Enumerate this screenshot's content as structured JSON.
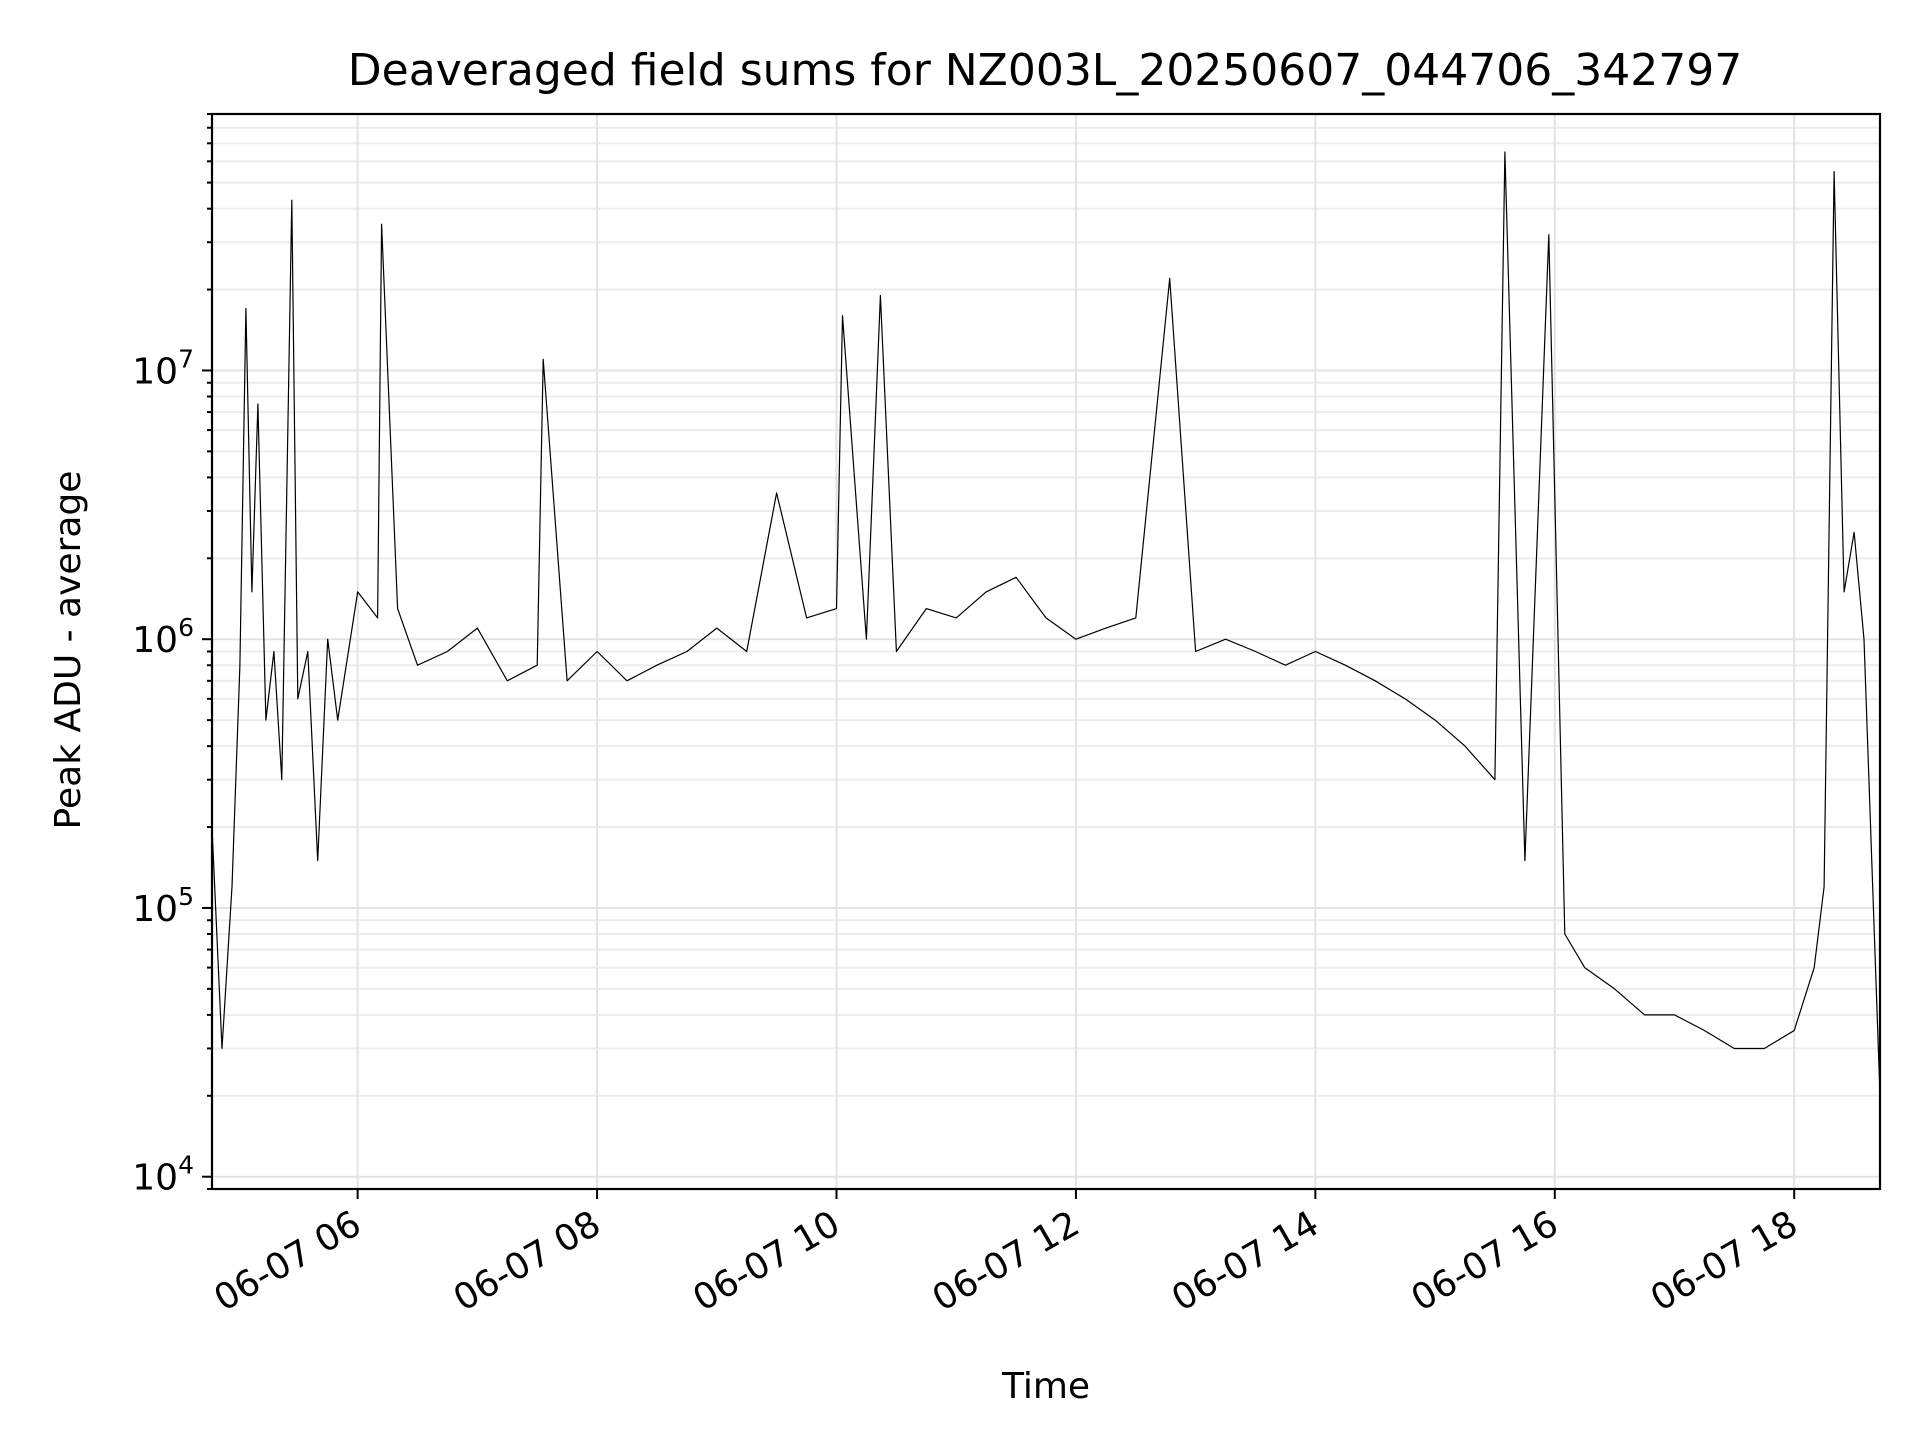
{
  "chart_data": {
    "type": "line",
    "title": "Deaveraged field sums for NZ003L_20250607_044706_342797",
    "xlabel": "Time",
    "ylabel": "Peak ADU - average",
    "x_scale": "time",
    "y_scale": "log",
    "xlim": [
      "2025-06-07 04:47",
      "2025-06-07 18:43"
    ],
    "ylim": [
      9000,
      90000000
    ],
    "grid": {
      "major": true,
      "minor_y": true
    },
    "colors": {
      "series": "#000000",
      "grid": "#e3e3e3"
    },
    "xticks": [
      {
        "value": "2025-06-07 06:00",
        "label": "06-07 06"
      },
      {
        "value": "2025-06-07 08:00",
        "label": "06-07 08"
      },
      {
        "value": "2025-06-07 10:00",
        "label": "06-07 10"
      },
      {
        "value": "2025-06-07 12:00",
        "label": "06-07 12"
      },
      {
        "value": "2025-06-07 14:00",
        "label": "06-07 14"
      },
      {
        "value": "2025-06-07 16:00",
        "label": "06-07 16"
      },
      {
        "value": "2025-06-07 18:00",
        "label": "06-07 18"
      }
    ],
    "yticks": [
      {
        "value": 10000,
        "base": "10",
        "exp": "4"
      },
      {
        "value": 100000,
        "base": "10",
        "exp": "5"
      },
      {
        "value": 1000000,
        "base": "10",
        "exp": "6"
      },
      {
        "value": 10000000,
        "base": "10",
        "exp": "7"
      }
    ],
    "series": [
      {
        "color": "#000000",
        "x": [
          "2025-06-07 04:47",
          "2025-06-07 04:52",
          "2025-06-07 04:57",
          "2025-06-07 05:01",
          "2025-06-07 05:04",
          "2025-06-07 05:07",
          "2025-06-07 05:10",
          "2025-06-07 05:14",
          "2025-06-07 05:18",
          "2025-06-07 05:22",
          "2025-06-07 05:27",
          "2025-06-07 05:30",
          "2025-06-07 05:35",
          "2025-06-07 05:40",
          "2025-06-07 05:45",
          "2025-06-07 05:50",
          "2025-06-07 06:00",
          "2025-06-07 06:10",
          "2025-06-07 06:12",
          "2025-06-07 06:20",
          "2025-06-07 06:30",
          "2025-06-07 06:45",
          "2025-06-07 07:00",
          "2025-06-07 07:15",
          "2025-06-07 07:30",
          "2025-06-07 07:33",
          "2025-06-07 07:45",
          "2025-06-07 08:00",
          "2025-06-07 08:15",
          "2025-06-07 08:30",
          "2025-06-07 08:45",
          "2025-06-07 09:00",
          "2025-06-07 09:15",
          "2025-06-07 09:30",
          "2025-06-07 09:45",
          "2025-06-07 10:00",
          "2025-06-07 10:03",
          "2025-06-07 10:15",
          "2025-06-07 10:22",
          "2025-06-07 10:30",
          "2025-06-07 10:45",
          "2025-06-07 11:00",
          "2025-06-07 11:15",
          "2025-06-07 11:30",
          "2025-06-07 11:45",
          "2025-06-07 12:00",
          "2025-06-07 12:15",
          "2025-06-07 12:30",
          "2025-06-07 12:47",
          "2025-06-07 13:00",
          "2025-06-07 13:15",
          "2025-06-07 13:30",
          "2025-06-07 13:45",
          "2025-06-07 14:00",
          "2025-06-07 14:15",
          "2025-06-07 14:30",
          "2025-06-07 14:45",
          "2025-06-07 15:00",
          "2025-06-07 15:15",
          "2025-06-07 15:30",
          "2025-06-07 15:35",
          "2025-06-07 15:45",
          "2025-06-07 15:57",
          "2025-06-07 16:05",
          "2025-06-07 16:15",
          "2025-06-07 16:30",
          "2025-06-07 16:45",
          "2025-06-07 17:00",
          "2025-06-07 17:15",
          "2025-06-07 17:30",
          "2025-06-07 17:45",
          "2025-06-07 18:00",
          "2025-06-07 18:10",
          "2025-06-07 18:15",
          "2025-06-07 18:20",
          "2025-06-07 18:25",
          "2025-06-07 18:30",
          "2025-06-07 18:35",
          "2025-06-07 18:43"
        ],
        "y": [
          200000,
          30000,
          120000,
          800000,
          17000000,
          1500000,
          7500000,
          500000,
          900000,
          300000,
          43000000,
          600000,
          900000,
          150000,
          1000000,
          500000,
          1500000,
          1200000,
          35000000,
          1300000,
          800000,
          900000,
          1100000,
          700000,
          800000,
          11000000,
          700000,
          900000,
          700000,
          800000,
          900000,
          1100000,
          900000,
          3500000,
          1200000,
          1300000,
          16000000,
          1000000,
          19000000,
          900000,
          1300000,
          1200000,
          1500000,
          1700000,
          1200000,
          1000000,
          1100000,
          1200000,
          22000000,
          900000,
          1000000,
          900000,
          800000,
          900000,
          800000,
          700000,
          600000,
          500000,
          400000,
          300000,
          65000000,
          150000,
          32000000,
          80000,
          60000,
          50000,
          40000,
          40000,
          35000,
          30000,
          30000,
          35000,
          60000,
          120000,
          55000000,
          1500000,
          2500000,
          1000000,
          20000
        ]
      }
    ]
  }
}
